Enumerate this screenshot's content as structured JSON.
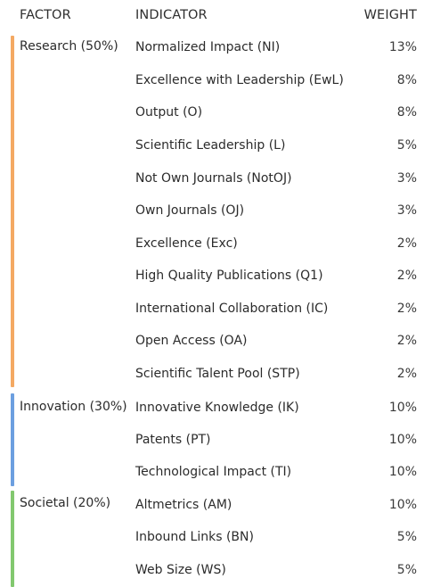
{
  "header": {
    "factor": "FACTOR",
    "indicator": "INDICATOR",
    "weight": "WEIGHT"
  },
  "colors": {
    "research": "#f4a963",
    "innovation": "#6c9fe0",
    "societal": "#82c86f"
  },
  "groups": [
    {
      "label": "Research (50%)",
      "rows": [
        {
          "indicator": "Normalized Impact (NI)",
          "weight": "13%"
        },
        {
          "indicator": "Excellence with Leadership (EwL)",
          "weight": "8%"
        },
        {
          "indicator": "Output (O)",
          "weight": "8%"
        },
        {
          "indicator": "Scientific Leadership (L)",
          "weight": "5%"
        },
        {
          "indicator": "Not Own Journals (NotOJ)",
          "weight": "3%"
        },
        {
          "indicator": "Own Journals (OJ)",
          "weight": "3%"
        },
        {
          "indicator": "Excellence (Exc)",
          "weight": "2%"
        },
        {
          "indicator": "High Quality Publications (Q1)",
          "weight": "2%"
        },
        {
          "indicator": "International Collaboration (IC)",
          "weight": "2%"
        },
        {
          "indicator": "Open Access (OA)",
          "weight": "2%"
        },
        {
          "indicator": "Scientific Talent Pool (STP)",
          "weight": "2%"
        }
      ]
    },
    {
      "label": "Innovation (30%)",
      "rows": [
        {
          "indicator": "Innovative Knowledge (IK)",
          "weight": "10%"
        },
        {
          "indicator": "Patents (PT)",
          "weight": "10%"
        },
        {
          "indicator": "Technological Impact (TI)",
          "weight": "10%"
        }
      ]
    },
    {
      "label": "Societal (20%)",
      "rows": [
        {
          "indicator": "Altmetrics (AM)",
          "weight": "10%"
        },
        {
          "indicator": "Inbound Links (BN)",
          "weight": "5%"
        },
        {
          "indicator": "Web Size (WS)",
          "weight": "5%"
        }
      ]
    }
  ]
}
